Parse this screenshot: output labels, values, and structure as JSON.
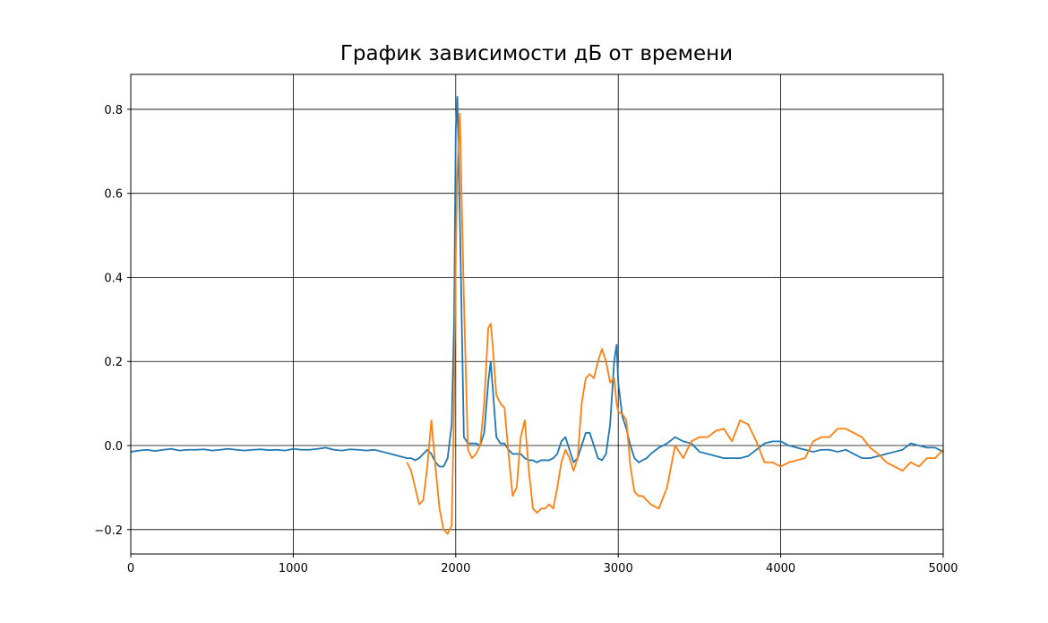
{
  "chart_data": {
    "type": "line",
    "title": "График зависимости дБ от времени",
    "x": [
      0,
      50,
      100,
      150,
      200,
      250,
      300,
      350,
      400,
      450,
      500,
      550,
      600,
      650,
      700,
      750,
      800,
      850,
      900,
      950,
      1000,
      1050,
      1100,
      1150,
      1200,
      1250,
      1300,
      1350,
      1400,
      1450,
      1500,
      1550,
      1600,
      1650,
      1700,
      1725,
      1750,
      1775,
      1800,
      1825,
      1850,
      1875,
      1900,
      1925,
      1950,
      1975,
      1990,
      2000,
      2010,
      2025,
      2050,
      2075,
      2100,
      2125,
      2150,
      2175,
      2200,
      2215,
      2225,
      2250,
      2275,
      2300,
      2325,
      2350,
      2375,
      2400,
      2425,
      2450,
      2475,
      2500,
      2525,
      2550,
      2575,
      2600,
      2625,
      2650,
      2675,
      2700,
      2725,
      2750,
      2775,
      2800,
      2825,
      2850,
      2875,
      2900,
      2925,
      2950,
      2975,
      2990,
      3000,
      3025,
      3050,
      3075,
      3100,
      3125,
      3150,
      3175,
      3200,
      3250,
      3300,
      3350,
      3400,
      3450,
      3500,
      3550,
      3600,
      3650,
      3700,
      3750,
      3800,
      3850,
      3900,
      3950,
      4000,
      4050,
      4100,
      4150,
      4200,
      4250,
      4300,
      4350,
      4400,
      4450,
      4500,
      4550,
      4600,
      4650,
      4700,
      4750,
      4800,
      4850,
      4900,
      4950,
      5000
    ],
    "series": [
      {
        "color": "#1f77b4",
        "values": [
          -0.015,
          -0.012,
          -0.01,
          -0.013,
          -0.01,
          -0.008,
          -0.012,
          -0.01,
          -0.01,
          -0.009,
          -0.012,
          -0.01,
          -0.008,
          -0.01,
          -0.012,
          -0.01,
          -0.009,
          -0.011,
          -0.01,
          -0.012,
          -0.008,
          -0.01,
          -0.01,
          -0.008,
          -0.005,
          -0.01,
          -0.012,
          -0.009,
          -0.01,
          -0.012,
          -0.01,
          -0.015,
          -0.02,
          -0.025,
          -0.03,
          -0.03,
          -0.035,
          -0.03,
          -0.02,
          -0.01,
          -0.02,
          -0.04,
          -0.05,
          -0.05,
          -0.03,
          0.05,
          0.3,
          0.75,
          0.83,
          0.55,
          0.02,
          0.005,
          0.005,
          0.005,
          0,
          0.03,
          0.15,
          0.2,
          0.15,
          0.02,
          0.005,
          0.005,
          -0.01,
          -0.02,
          -0.02,
          -0.02,
          -0.03,
          -0.035,
          -0.035,
          -0.04,
          -0.035,
          -0.035,
          -0.035,
          -0.03,
          -0.02,
          0.01,
          0.02,
          -0.01,
          -0.04,
          -0.03,
          0,
          0.03,
          0.03,
          0,
          -0.03,
          -0.035,
          -0.02,
          0.05,
          0.2,
          0.24,
          0.15,
          0.07,
          0.04,
          0,
          -0.03,
          -0.04,
          -0.035,
          -0.03,
          -0.02,
          -0.005,
          0.005,
          0.02,
          0.01,
          0.005,
          -0.015,
          -0.02,
          -0.025,
          -0.03,
          -0.03,
          -0.03,
          -0.025,
          -0.01,
          0.005,
          0.01,
          0.01,
          0,
          -0.005,
          -0.01,
          -0.015,
          -0.01,
          -0.01,
          -0.015,
          -0.01,
          -0.02,
          -0.03,
          -0.03,
          -0.025,
          -0.02,
          -0.015,
          -0.01,
          0.005,
          0,
          -0.005,
          -0.005,
          -0.015
        ]
      },
      {
        "color": "#ff7f0e",
        "values": [
          null,
          null,
          null,
          null,
          null,
          null,
          null,
          null,
          null,
          null,
          null,
          null,
          null,
          null,
          null,
          null,
          null,
          null,
          null,
          null,
          null,
          null,
          null,
          null,
          null,
          null,
          null,
          null,
          null,
          null,
          null,
          null,
          null,
          null,
          -0.04,
          -0.06,
          -0.1,
          -0.14,
          -0.13,
          -0.05,
          0.06,
          -0.05,
          -0.15,
          -0.2,
          -0.21,
          -0.19,
          0.1,
          0.45,
          0.65,
          0.79,
          0.35,
          -0.01,
          -0.03,
          -0.02,
          0,
          0.1,
          0.28,
          0.29,
          0.25,
          0.12,
          0.1,
          0.09,
          -0.02,
          -0.12,
          -0.1,
          0.02,
          0.06,
          -0.06,
          -0.15,
          -0.16,
          -0.15,
          -0.15,
          -0.14,
          -0.15,
          -0.1,
          -0.04,
          -0.01,
          -0.03,
          -0.06,
          -0.03,
          0.1,
          0.16,
          0.17,
          0.16,
          0.2,
          0.23,
          0.2,
          0.15,
          0.16,
          0.1,
          0.08,
          0.075,
          0.06,
          -0.05,
          -0.11,
          -0.12,
          -0.12,
          -0.13,
          -0.14,
          -0.15,
          -0.1,
          0,
          -0.03,
          0.01,
          0.02,
          0.02,
          0.035,
          0.04,
          0.01,
          0.06,
          0.05,
          0.01,
          -0.04,
          -0.04,
          -0.05,
          -0.04,
          -0.035,
          -0.03,
          0.01,
          0.02,
          0.02,
          0.04,
          0.04,
          0.03,
          0.02,
          -0.005,
          -0.02,
          -0.04,
          -0.05,
          -0.06,
          -0.04,
          -0.05,
          -0.03,
          -0.03,
          -0.01
        ]
      }
    ],
    "xlim": [
      0,
      5000
    ],
    "xticks": [
      0,
      1000,
      2000,
      3000,
      4000,
      5000
    ],
    "ylim": [
      -0.258,
      0.883
    ],
    "yticks": [
      {
        "value": -0.2,
        "label": "−0.2"
      },
      {
        "value": 0,
        "label": "0.0"
      },
      0.2,
      0.4,
      0.6,
      0.8
    ],
    "grid": true,
    "grid_color": "#000000"
  }
}
